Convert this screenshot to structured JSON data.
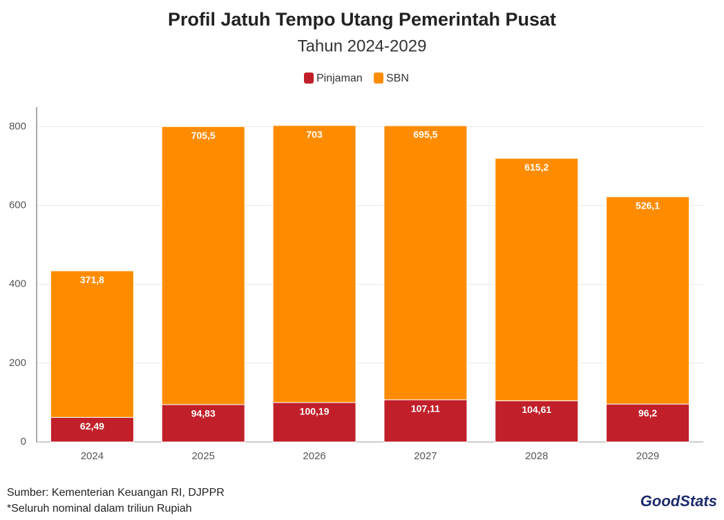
{
  "chart_data": {
    "type": "stacked_bar",
    "title": "Profil Jatuh Tempo Utang Pemerintah Pusat",
    "subtitle": "Tahun 2024-2029",
    "categories": [
      "2024",
      "2025",
      "2026",
      "2027",
      "2028",
      "2029"
    ],
    "series": [
      {
        "name": "Pinjaman",
        "color": "#c1202a",
        "values": [
          62.49,
          94.83,
          100.19,
          107.11,
          104.61,
          96.2
        ],
        "value_labels": [
          "62,49",
          "94,83",
          "100,19",
          "107,11",
          "104,61",
          "96,2"
        ]
      },
      {
        "name": "SBN",
        "color": "#ff8c00",
        "values": [
          371.8,
          705.5,
          703,
          695.5,
          615.2,
          526.1
        ],
        "value_labels": [
          "371,8",
          "705,5",
          "703",
          "695,5",
          "615,2",
          "526,1"
        ]
      }
    ],
    "ylim": [
      0,
      850
    ],
    "yticks": [
      0,
      200,
      400,
      600,
      800
    ],
    "grid": true,
    "legend": "top",
    "source": "Sumber: Kementerian Keuangan RI, DJPPR",
    "note": "*Seluruh nominal dalam triliun Rupiah",
    "logo": "GoodStats"
  }
}
